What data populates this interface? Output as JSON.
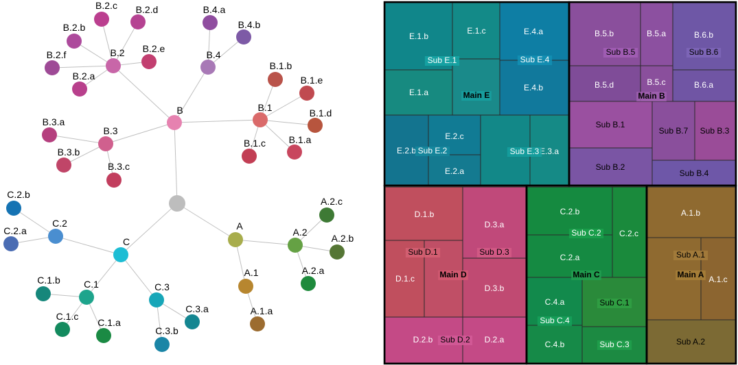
{
  "tree": {
    "root": {
      "label": "",
      "color": "#bdbdbd"
    },
    "nodes": [
      {
        "id": "B",
        "label": "B",
        "parent": "root",
        "color": "#e682b0"
      },
      {
        "id": "B.1",
        "label": "B.1",
        "parent": "B",
        "color": "#da6a6a"
      },
      {
        "id": "B.1.a",
        "label": "B.1.a",
        "parent": "B.1",
        "color": "#c8465e"
      },
      {
        "id": "B.1.b",
        "label": "B.1.b",
        "parent": "B.1",
        "color": "#b9534a"
      },
      {
        "id": "B.1.c",
        "label": "B.1.c",
        "parent": "B.1",
        "color": "#c23e54"
      },
      {
        "id": "B.1.d",
        "label": "B.1.d",
        "parent": "B.1",
        "color": "#b7553e"
      },
      {
        "id": "B.1.e",
        "label": "B.1.e",
        "parent": "B.1",
        "color": "#c04a50"
      },
      {
        "id": "B.2",
        "label": "B.2",
        "parent": "B",
        "color": "#c866a8"
      },
      {
        "id": "B.2.a",
        "label": "B.2.a",
        "parent": "B.2",
        "color": "#b8408c"
      },
      {
        "id": "B.2.b",
        "label": "B.2.b",
        "parent": "B.2",
        "color": "#ad4a9c"
      },
      {
        "id": "B.2.c",
        "label": "B.2.c",
        "parent": "B.2",
        "color": "#bb3f8f"
      },
      {
        "id": "B.2.d",
        "label": "B.2.d",
        "parent": "B.2",
        "color": "#b54392"
      },
      {
        "id": "B.2.e",
        "label": "B.2.e",
        "parent": "B.2",
        "color": "#c23f70"
      },
      {
        "id": "B.2.f",
        "label": "B.2.f",
        "parent": "B.2",
        "color": "#9e4a96"
      },
      {
        "id": "B.3",
        "label": "B.3",
        "parent": "B",
        "color": "#d0608e"
      },
      {
        "id": "B.3.a",
        "label": "B.3.a",
        "parent": "B.3",
        "color": "#b53f7e"
      },
      {
        "id": "B.3.b",
        "label": "B.3.b",
        "parent": "B.3",
        "color": "#c04568"
      },
      {
        "id": "B.3.c",
        "label": "B.3.c",
        "parent": "B.3",
        "color": "#c23e5e"
      },
      {
        "id": "B.4",
        "label": "B.4",
        "parent": "B",
        "color": "#a879b6"
      },
      {
        "id": "B.4.a",
        "label": "B.4.a",
        "parent": "B.4",
        "color": "#8f4d9f"
      },
      {
        "id": "B.4.b",
        "label": "B.4.b",
        "parent": "B.4",
        "color": "#7d5aa6"
      },
      {
        "id": "A",
        "label": "A",
        "parent": "root",
        "color": "#a8ad4c"
      },
      {
        "id": "A.1",
        "label": "A.1",
        "parent": "A",
        "color": "#b7862f"
      },
      {
        "id": "A.1.a",
        "label": "A.1.a",
        "parent": "A.1",
        "color": "#9c6c30"
      },
      {
        "id": "A.2",
        "label": "A.2",
        "parent": "A",
        "color": "#65a144"
      },
      {
        "id": "A.2.a",
        "label": "A.2.a",
        "parent": "A.2",
        "color": "#1e8a3c"
      },
      {
        "id": "A.2.b",
        "label": "A.2.b",
        "parent": "A.2",
        "color": "#557635"
      },
      {
        "id": "A.2.c",
        "label": "A.2.c",
        "parent": "A.2",
        "color": "#3e7a35"
      },
      {
        "id": "C",
        "label": "C",
        "parent": "root",
        "color": "#1dbdd4"
      },
      {
        "id": "C.1",
        "label": "C.1",
        "parent": "C",
        "color": "#1ea48c"
      },
      {
        "id": "C.1.a",
        "label": "C.1.a",
        "parent": "C.1",
        "color": "#1b8a44"
      },
      {
        "id": "C.1.b",
        "label": "C.1.b",
        "parent": "C.1",
        "color": "#16877b"
      },
      {
        "id": "C.1.c",
        "label": "C.1.c",
        "parent": "C.1",
        "color": "#138a5e"
      },
      {
        "id": "C.2",
        "label": "C.2",
        "parent": "C",
        "color": "#4a8ed0"
      },
      {
        "id": "C.2.a",
        "label": "C.2.a",
        "parent": "C.2",
        "color": "#4a6cb3"
      },
      {
        "id": "C.2.b",
        "label": "C.2.b",
        "parent": "C.2",
        "color": "#1573b3"
      },
      {
        "id": "C.3",
        "label": "C.3",
        "parent": "C",
        "color": "#17a6b8"
      },
      {
        "id": "C.3.a",
        "label": "C.3.a",
        "parent": "C.3",
        "color": "#148691"
      },
      {
        "id": "C.3.b",
        "label": "C.3.b",
        "parent": "C.3",
        "color": "#1a85a6"
      }
    ]
  },
  "treemap": {
    "groups": [
      {
        "id": "main-e",
        "label": "Main E",
        "color": "#1a8a8a",
        "subs": [
          {
            "label": "Sub E.1",
            "color": "#13878a",
            "leaves": [
              {
                "label": "E.1.b",
                "color": "#10868a"
              },
              {
                "label": "E.1.c",
                "color": "#138a88"
              },
              {
                "label": "E.1.a",
                "color": "#178a80"
              }
            ]
          },
          {
            "label": "Sub E.4",
            "color": "#0f7ea0",
            "leaves": [
              {
                "label": "E.4.a",
                "color": "#0e7ea4"
              },
              {
                "label": "E.4.b",
                "color": "#11799c"
              }
            ]
          },
          {
            "label": "Sub E.2",
            "color": "#127a92",
            "leaves": [
              {
                "label": "E.2.b",
                "color": "#13748f"
              },
              {
                "label": "E.2.c",
                "color": "#117b94"
              },
              {
                "label": "E.2.a",
                "color": "#147a90"
              }
            ]
          },
          {
            "label": "Sub E.3",
            "color": "#128888",
            "leaves": [
              {
                "label": "E.3.a",
                "color": "#158a86"
              }
            ]
          }
        ]
      },
      {
        "id": "main-b",
        "label": "Main B",
        "color": "#8a4f9c",
        "subs": [
          {
            "label": "Sub B.5",
            "color": "#8a4f9c",
            "leaves": [
              {
                "label": "B.5.b",
                "color": "#8a4f9c"
              },
              {
                "label": "B.5.a",
                "color": "#8c50a0"
              },
              {
                "label": "B.5.d",
                "color": "#7f4c98"
              },
              {
                "label": "B.5.c",
                "color": "#8a4f9c"
              }
            ]
          },
          {
            "label": "Sub B.6",
            "color": "#6e57a6",
            "leaves": [
              {
                "label": "B.6.b",
                "color": "#6e57a6"
              },
              {
                "label": "B.6.a",
                "color": "#7055a4"
              }
            ]
          },
          {
            "label": "Sub B.1",
            "color": "#9a50a0",
            "leaves": []
          },
          {
            "label": "Sub B.7",
            "color": "#8a4f9c",
            "leaves": []
          },
          {
            "label": "Sub B.3",
            "color": "#9a4c98",
            "leaves": []
          },
          {
            "label": "Sub B.2",
            "color": "#7a55a4",
            "leaves": []
          },
          {
            "label": "Sub B.4",
            "color": "#6e57a8",
            "leaves": []
          }
        ]
      },
      {
        "id": "main-d",
        "label": "Main D",
        "color": "#c04f66",
        "subs": [
          {
            "label": "Sub D.1",
            "color": "#c04f5e",
            "leaves": [
              {
                "label": "D.1.b",
                "color": "#c04f5e"
              },
              {
                "label": "D.1.c",
                "color": "#c04f5e"
              }
            ]
          },
          {
            "label": "Sub D.3",
            "color": "#c04a72",
            "leaves": [
              {
                "label": "D.3.a",
                "color": "#c0497a"
              },
              {
                "label": "D.3.b",
                "color": "#c04a72"
              }
            ]
          },
          {
            "label": "Sub D.2",
            "color": "#c44a86",
            "leaves": [
              {
                "label": "D.2.b",
                "color": "#c44a86"
              },
              {
                "label": "D.2.a",
                "color": "#c44a86"
              }
            ]
          }
        ]
      },
      {
        "id": "main-c",
        "label": "Main C",
        "color": "#1d8a48",
        "subs": [
          {
            "label": "Sub C.2",
            "color": "#158a40",
            "leaves": [
              {
                "label": "C.2.b",
                "color": "#158a40"
              },
              {
                "label": "C.2.c",
                "color": "#1a8a3c"
              },
              {
                "label": "C.2.a",
                "color": "#158a42"
              }
            ]
          },
          {
            "label": "Sub C.4",
            "color": "#128a4c",
            "leaves": [
              {
                "label": "C.4.a",
                "color": "#128a4c"
              },
              {
                "label": "C.4.b",
                "color": "#168a48"
              }
            ]
          },
          {
            "label": "Sub C.1",
            "color": "#2a8a3a",
            "leaves": []
          },
          {
            "label": "Sub C.3",
            "color": "#1c8a42",
            "leaves": []
          }
        ]
      },
      {
        "id": "main-a",
        "label": "Main A",
        "color": "#8f6a30",
        "subs": [
          {
            "label": "Sub A.1",
            "color": "#8f6a30",
            "leaves": [
              {
                "label": "A.1.b",
                "color": "#8f6a30"
              },
              {
                "label": "A.1.c",
                "color": "#8c6530"
              }
            ]
          },
          {
            "label": "Sub A.2",
            "color": "#7c6a34",
            "leaves": []
          }
        ]
      }
    ]
  }
}
